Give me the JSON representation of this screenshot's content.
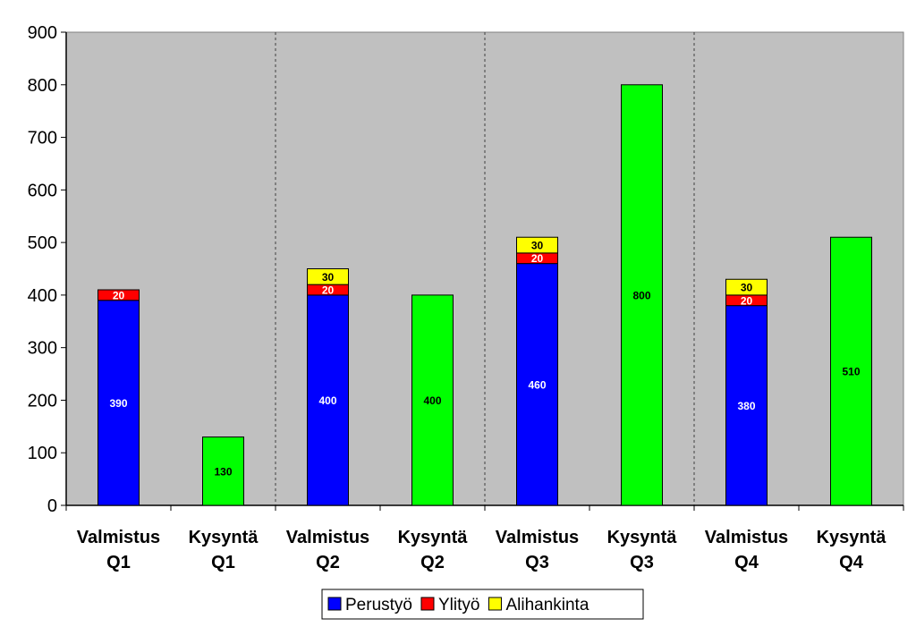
{
  "chart_data": {
    "type": "bar",
    "stacked": true,
    "title": "",
    "xlabel": "",
    "ylabel": "",
    "ylim": [
      0,
      900
    ],
    "yticks": [
      "0",
      "100",
      "200",
      "300",
      "400",
      "500",
      "600",
      "700",
      "800",
      "900"
    ],
    "categories": [
      [
        "Valmistus",
        "Q1"
      ],
      [
        "Kysyntä",
        "Q1"
      ],
      [
        "Valmistus",
        "Q2"
      ],
      [
        "Kysyntä",
        "Q2"
      ],
      [
        "Valmistus",
        "Q3"
      ],
      [
        "Kysyntä",
        "Q3"
      ],
      [
        "Valmistus",
        "Q4"
      ],
      [
        "Kysyntä",
        "Q4"
      ]
    ],
    "series": [
      {
        "name": "Perustyö",
        "color": "#0000FF",
        "label_color": "#FFFFFF",
        "values": [
          390,
          null,
          400,
          null,
          460,
          null,
          380,
          null
        ]
      },
      {
        "name": "Ylityö",
        "color": "#FF0000",
        "label_color": "#FFFFFF",
        "values": [
          20,
          null,
          20,
          null,
          20,
          null,
          20,
          null
        ]
      },
      {
        "name": "Alihankinta",
        "color": "#FFFF00",
        "label_color": "#000000",
        "values": [
          null,
          null,
          30,
          null,
          30,
          null,
          30,
          null
        ]
      }
    ],
    "demand": {
      "color": "#00FF00",
      "label_color": "#000000",
      "values": [
        null,
        130,
        null,
        400,
        null,
        800,
        null,
        510
      ]
    },
    "plot_background": "#C0C0C0",
    "quarter_separators": true,
    "legend_position": "bottom-center",
    "grid": false
  }
}
